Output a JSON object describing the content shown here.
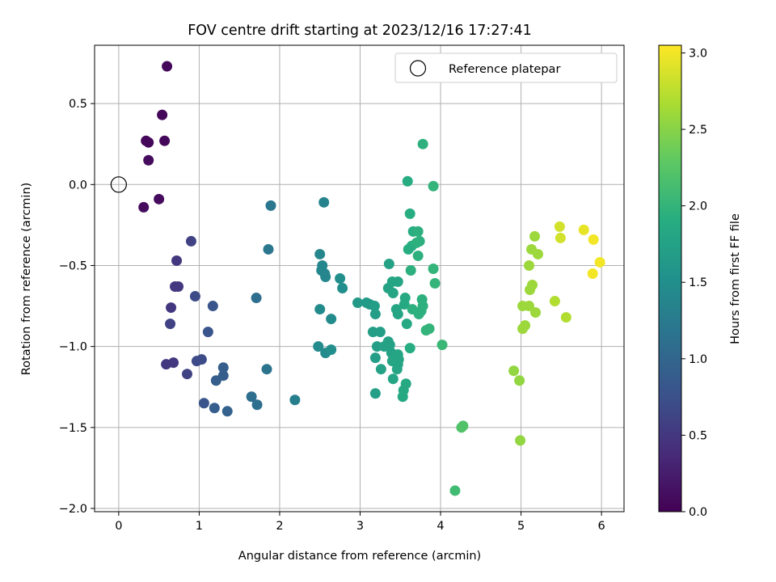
{
  "chart_data": {
    "type": "scatter",
    "title": "FOV centre drift starting at 2023/12/16 17:27:41",
    "xlabel": "Angular distance from reference (arcmin)",
    "ylabel": "Rotation from reference (arcmin)",
    "xlim": [
      -0.3,
      6.28
    ],
    "ylim": [
      -2.02,
      0.86
    ],
    "xticks": [
      0,
      1,
      2,
      3,
      4,
      5,
      6
    ],
    "yticks": [
      -2.0,
      -1.5,
      -1.0,
      -0.5,
      0.0,
      0.5
    ],
    "xtick_labels": [
      "0",
      "1",
      "2",
      "3",
      "4",
      "5",
      "6"
    ],
    "ytick_labels": [
      "−2.0",
      "−1.5",
      "−1.0",
      "−0.5",
      "0.0",
      "0.5"
    ],
    "grid": true,
    "legend": {
      "location": "top-right",
      "entries": [
        {
          "label": "Reference platepar",
          "marker": "open-circle"
        }
      ]
    },
    "reference_point": {
      "x": 0,
      "y": 0
    },
    "colorbar": {
      "label": "Hours from first FF file",
      "colormap": "viridis",
      "range": [
        0,
        3.05
      ],
      "ticks": [
        0.0,
        0.5,
        1.0,
        1.5,
        2.0,
        2.5,
        3.0
      ],
      "tick_labels": [
        "0.0",
        "0.5",
        "1.0",
        "1.5",
        "2.0",
        "2.5",
        "3.0"
      ]
    },
    "points": [
      {
        "x": 0.6,
        "y": 0.73,
        "c": 0.05
      },
      {
        "x": 0.54,
        "y": 0.43,
        "c": 0.05
      },
      {
        "x": 0.34,
        "y": 0.27,
        "c": 0.05
      },
      {
        "x": 0.37,
        "y": 0.26,
        "c": 0.05
      },
      {
        "x": 0.57,
        "y": 0.27,
        "c": 0.05
      },
      {
        "x": 0.37,
        "y": 0.15,
        "c": 0.1
      },
      {
        "x": 0.5,
        "y": -0.09,
        "c": 0.1
      },
      {
        "x": 0.31,
        "y": -0.14,
        "c": 0.1
      },
      {
        "x": 0.9,
        "y": -0.35,
        "c": 0.6
      },
      {
        "x": 0.72,
        "y": -0.47,
        "c": 0.5
      },
      {
        "x": 0.7,
        "y": -0.63,
        "c": 0.5
      },
      {
        "x": 0.74,
        "y": -0.63,
        "c": 0.5
      },
      {
        "x": 0.95,
        "y": -0.69,
        "c": 0.7
      },
      {
        "x": 0.65,
        "y": -0.76,
        "c": 0.5
      },
      {
        "x": 1.17,
        "y": -0.75,
        "c": 0.8
      },
      {
        "x": 0.64,
        "y": -0.86,
        "c": 0.6
      },
      {
        "x": 1.11,
        "y": -0.91,
        "c": 0.8
      },
      {
        "x": 0.59,
        "y": -1.11,
        "c": 0.5
      },
      {
        "x": 0.68,
        "y": -1.1,
        "c": 0.5
      },
      {
        "x": 0.85,
        "y": -1.17,
        "c": 0.6
      },
      {
        "x": 0.97,
        "y": -1.09,
        "c": 0.7
      },
      {
        "x": 1.03,
        "y": -1.08,
        "c": 0.7
      },
      {
        "x": 1.3,
        "y": -1.13,
        "c": 0.9
      },
      {
        "x": 1.3,
        "y": -1.18,
        "c": 0.9
      },
      {
        "x": 1.21,
        "y": -1.21,
        "c": 0.9
      },
      {
        "x": 1.06,
        "y": -1.35,
        "c": 0.8
      },
      {
        "x": 1.19,
        "y": -1.38,
        "c": 0.9
      },
      {
        "x": 1.35,
        "y": -1.4,
        "c": 0.95
      },
      {
        "x": 1.65,
        "y": -1.31,
        "c": 1.1
      },
      {
        "x": 1.72,
        "y": -1.36,
        "c": 1.1
      },
      {
        "x": 1.71,
        "y": -0.7,
        "c": 1.1
      },
      {
        "x": 1.84,
        "y": -1.14,
        "c": 1.15
      },
      {
        "x": 1.89,
        "y": -0.13,
        "c": 1.2
      },
      {
        "x": 1.86,
        "y": -0.4,
        "c": 1.2
      },
      {
        "x": 2.19,
        "y": -1.33,
        "c": 1.3
      },
      {
        "x": 2.55,
        "y": -0.11,
        "c": 1.35
      },
      {
        "x": 2.5,
        "y": -0.43,
        "c": 1.4
      },
      {
        "x": 2.53,
        "y": -0.5,
        "c": 1.4
      },
      {
        "x": 2.52,
        "y": -0.53,
        "c": 1.4
      },
      {
        "x": 2.56,
        "y": -0.55,
        "c": 1.4
      },
      {
        "x": 2.57,
        "y": -0.57,
        "c": 1.4
      },
      {
        "x": 2.5,
        "y": -0.77,
        "c": 1.45
      },
      {
        "x": 2.64,
        "y": -0.83,
        "c": 1.45
      },
      {
        "x": 2.48,
        "y": -1.0,
        "c": 1.45
      },
      {
        "x": 2.57,
        "y": -1.04,
        "c": 1.45
      },
      {
        "x": 2.64,
        "y": -1.02,
        "c": 1.5
      },
      {
        "x": 2.75,
        "y": -0.58,
        "c": 1.5
      },
      {
        "x": 2.78,
        "y": -0.64,
        "c": 1.5
      },
      {
        "x": 2.97,
        "y": -0.73,
        "c": 1.65
      },
      {
        "x": 3.08,
        "y": -0.73,
        "c": 1.65
      },
      {
        "x": 3.12,
        "y": -0.74,
        "c": 1.65
      },
      {
        "x": 3.18,
        "y": -0.75,
        "c": 1.7
      },
      {
        "x": 3.19,
        "y": -0.8,
        "c": 1.7
      },
      {
        "x": 3.16,
        "y": -0.91,
        "c": 1.7
      },
      {
        "x": 3.25,
        "y": -0.91,
        "c": 1.7
      },
      {
        "x": 3.21,
        "y": -1.0,
        "c": 1.7
      },
      {
        "x": 3.19,
        "y": -1.07,
        "c": 1.7
      },
      {
        "x": 3.26,
        "y": -1.14,
        "c": 1.75
      },
      {
        "x": 3.19,
        "y": -1.29,
        "c": 1.7
      },
      {
        "x": 3.3,
        "y": -1.0,
        "c": 1.75
      },
      {
        "x": 3.35,
        "y": -0.97,
        "c": 1.75
      },
      {
        "x": 3.37,
        "y": -0.99,
        "c": 1.75
      },
      {
        "x": 3.39,
        "y": -1.04,
        "c": 1.75
      },
      {
        "x": 3.35,
        "y": -0.64,
        "c": 1.75
      },
      {
        "x": 3.36,
        "y": -0.49,
        "c": 1.75
      },
      {
        "x": 3.4,
        "y": -0.6,
        "c": 1.8
      },
      {
        "x": 3.47,
        "y": -0.6,
        "c": 1.8
      },
      {
        "x": 3.41,
        "y": -0.67,
        "c": 1.8
      },
      {
        "x": 3.45,
        "y": -0.77,
        "c": 1.8
      },
      {
        "x": 3.47,
        "y": -0.8,
        "c": 1.8
      },
      {
        "x": 3.4,
        "y": -1.09,
        "c": 1.8
      },
      {
        "x": 3.47,
        "y": -1.05,
        "c": 1.8
      },
      {
        "x": 3.48,
        "y": -1.08,
        "c": 1.8
      },
      {
        "x": 3.47,
        "y": -1.11,
        "c": 1.8
      },
      {
        "x": 3.46,
        "y": -1.14,
        "c": 1.8
      },
      {
        "x": 3.41,
        "y": -1.2,
        "c": 1.8
      },
      {
        "x": 3.54,
        "y": -1.27,
        "c": 1.85
      },
      {
        "x": 3.53,
        "y": -1.31,
        "c": 1.85
      },
      {
        "x": 3.57,
        "y": -1.23,
        "c": 1.85
      },
      {
        "x": 3.56,
        "y": -0.7,
        "c": 1.85
      },
      {
        "x": 3.55,
        "y": -0.74,
        "c": 1.85
      },
      {
        "x": 3.58,
        "y": -0.86,
        "c": 1.85
      },
      {
        "x": 3.62,
        "y": -1.01,
        "c": 1.9
      },
      {
        "x": 3.62,
        "y": -0.18,
        "c": 1.9
      },
      {
        "x": 3.59,
        "y": 0.02,
        "c": 1.9
      },
      {
        "x": 3.6,
        "y": -0.4,
        "c": 1.9
      },
      {
        "x": 3.64,
        "y": -0.38,
        "c": 1.9
      },
      {
        "x": 3.66,
        "y": -0.29,
        "c": 1.9
      },
      {
        "x": 3.72,
        "y": -0.29,
        "c": 1.95
      },
      {
        "x": 3.7,
        "y": -0.36,
        "c": 1.95
      },
      {
        "x": 3.74,
        "y": -0.35,
        "c": 1.95
      },
      {
        "x": 3.72,
        "y": -0.44,
        "c": 1.95
      },
      {
        "x": 3.63,
        "y": -0.53,
        "c": 1.95
      },
      {
        "x": 3.65,
        "y": -0.77,
        "c": 1.95
      },
      {
        "x": 3.73,
        "y": -0.8,
        "c": 1.95
      },
      {
        "x": 3.77,
        "y": -0.71,
        "c": 1.95
      },
      {
        "x": 3.78,
        "y": -0.75,
        "c": 1.95
      },
      {
        "x": 3.76,
        "y": -0.78,
        "c": 1.95
      },
      {
        "x": 3.78,
        "y": 0.25,
        "c": 1.95
      },
      {
        "x": 3.82,
        "y": -0.9,
        "c": 2.0
      },
      {
        "x": 3.86,
        "y": -0.89,
        "c": 2.0
      },
      {
        "x": 3.91,
        "y": -0.01,
        "c": 2.0
      },
      {
        "x": 3.91,
        "y": -0.52,
        "c": 2.0
      },
      {
        "x": 3.93,
        "y": -0.61,
        "c": 2.0
      },
      {
        "x": 4.02,
        "y": -0.99,
        "c": 2.05
      },
      {
        "x": 4.18,
        "y": -1.89,
        "c": 2.1
      },
      {
        "x": 4.26,
        "y": -1.5,
        "c": 2.2
      },
      {
        "x": 4.28,
        "y": -1.49,
        "c": 2.2
      },
      {
        "x": 4.91,
        "y": -1.15,
        "c": 2.55
      },
      {
        "x": 4.98,
        "y": -1.21,
        "c": 2.55
      },
      {
        "x": 4.99,
        "y": -1.58,
        "c": 2.55
      },
      {
        "x": 5.02,
        "y": -0.75,
        "c": 2.6
      },
      {
        "x": 5.02,
        "y": -0.89,
        "c": 2.6
      },
      {
        "x": 5.05,
        "y": -0.87,
        "c": 2.6
      },
      {
        "x": 5.1,
        "y": -0.75,
        "c": 2.6
      },
      {
        "x": 5.1,
        "y": -0.5,
        "c": 2.6
      },
      {
        "x": 5.11,
        "y": -0.65,
        "c": 2.6
      },
      {
        "x": 5.14,
        "y": -0.62,
        "c": 2.6
      },
      {
        "x": 5.18,
        "y": -0.79,
        "c": 2.6
      },
      {
        "x": 5.13,
        "y": -0.4,
        "c": 2.6
      },
      {
        "x": 5.21,
        "y": -0.43,
        "c": 2.6
      },
      {
        "x": 5.17,
        "y": -0.32,
        "c": 2.6
      },
      {
        "x": 5.42,
        "y": -0.72,
        "c": 2.7
      },
      {
        "x": 5.56,
        "y": -0.82,
        "c": 2.7
      },
      {
        "x": 5.48,
        "y": -0.26,
        "c": 2.85
      },
      {
        "x": 5.49,
        "y": -0.33,
        "c": 2.85
      },
      {
        "x": 5.78,
        "y": -0.28,
        "c": 2.95
      },
      {
        "x": 5.9,
        "y": -0.34,
        "c": 3.0
      },
      {
        "x": 5.98,
        "y": -0.48,
        "c": 3.0
      },
      {
        "x": 5.89,
        "y": -0.55,
        "c": 3.0
      }
    ]
  }
}
